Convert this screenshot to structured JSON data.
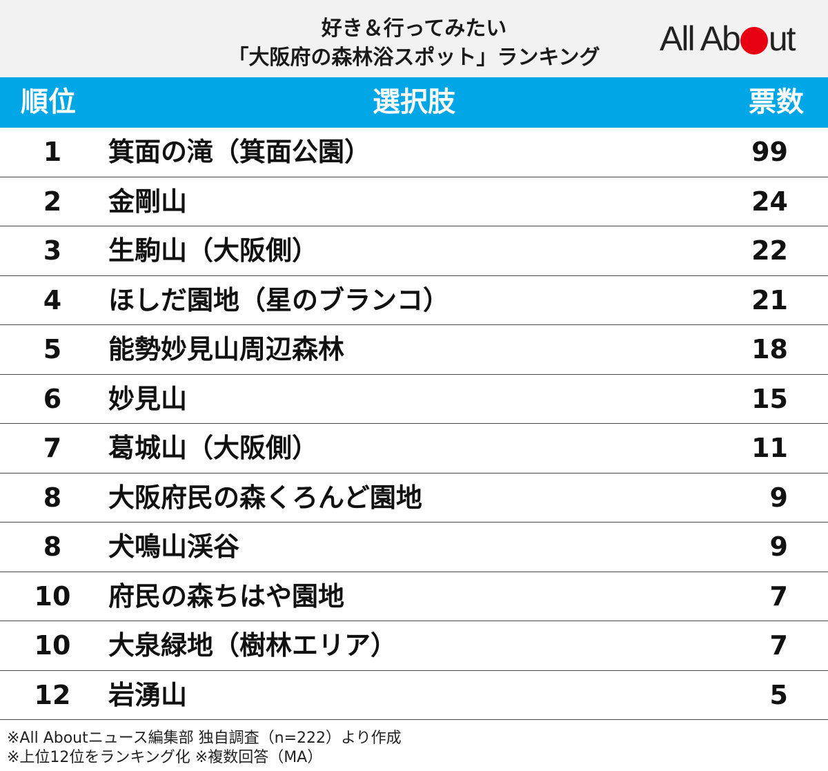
{
  "header": {
    "title_line1": "好き＆行ってみたい",
    "title_line2": "「大阪府の森林浴スポット」ランキング",
    "logo_left": "All Ab",
    "logo_right": "ut",
    "logo_dot_color": "#e60012"
  },
  "table": {
    "header_color": "#00a6e6",
    "columns": {
      "rank": "順位",
      "choice": "選択肢",
      "votes": "票数"
    },
    "rows": [
      {
        "rank": "1",
        "choice": "箕面の滝（箕面公園）",
        "votes": "99"
      },
      {
        "rank": "2",
        "choice": "金剛山",
        "votes": "24"
      },
      {
        "rank": "3",
        "choice": "生駒山（大阪側）",
        "votes": "22"
      },
      {
        "rank": "4",
        "choice": "ほしだ園地（星のブランコ）",
        "votes": "21"
      },
      {
        "rank": "5",
        "choice": "能勢妙見山周辺森林",
        "votes": "18"
      },
      {
        "rank": "6",
        "choice": "妙見山",
        "votes": "15"
      },
      {
        "rank": "7",
        "choice": "葛城山（大阪側）",
        "votes": "11"
      },
      {
        "rank": "8",
        "choice": "大阪府民の森くろんど園地",
        "votes": "9"
      },
      {
        "rank": "8",
        "choice": "犬鳴山渓谷",
        "votes": "9"
      },
      {
        "rank": "10",
        "choice": "府民の森ちはや園地",
        "votes": "7"
      },
      {
        "rank": "10",
        "choice": "大泉緑地（樹林エリア）",
        "votes": "7"
      },
      {
        "rank": "12",
        "choice": "岩湧山",
        "votes": "5"
      }
    ]
  },
  "notes": {
    "line1": "※All Aboutニュース編集部 独自調査（n=222）より作成",
    "line2": "※上位12位をランキング化 ※複数回答（MA）"
  }
}
